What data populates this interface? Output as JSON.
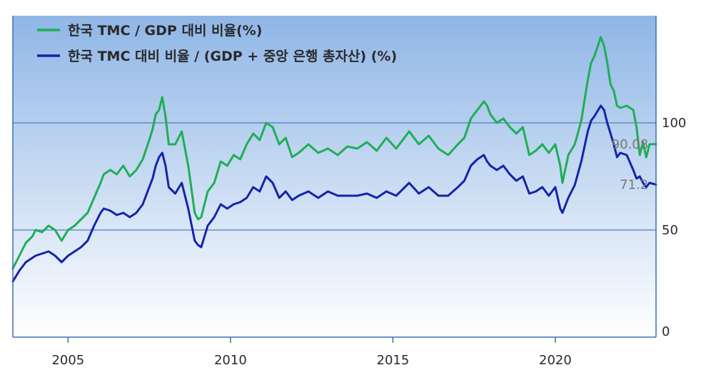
{
  "chart_data": {
    "type": "line",
    "title": "",
    "xlabel": "",
    "ylabel": "",
    "xlim": [
      2003.3,
      2023.1
    ],
    "ylim": [
      0,
      150
    ],
    "grid": "horizontal",
    "legend_placement": "top-left",
    "x_ticks": [
      2005,
      2010,
      2015,
      2020
    ],
    "x_tick_labels": [
      "2005",
      "2010",
      "2015",
      "2020"
    ],
    "y_ticks": [
      0,
      50,
      100
    ],
    "y_tick_labels": [
      "0",
      "50",
      "100"
    ],
    "annotations": [
      {
        "text": "90.08",
        "x": 2022.95,
        "y": 90.08
      },
      {
        "text": "71.2",
        "x": 2022.95,
        "y": 71.2
      }
    ],
    "colors": {
      "series_1": "#1fae55",
      "series_2": "#1424a8",
      "plot_top": "#8fb6e6",
      "plot_bottom": "#ffffff",
      "axis": "#3d6db5",
      "grid": "#4a7cc4"
    },
    "series": [
      {
        "name": "한국 TMC / GDP 대비 비율(%)",
        "color": "#1fae55",
        "x": [
          2003.3,
          2003.5,
          2003.7,
          2003.9,
          2004.0,
          2004.2,
          2004.4,
          2004.6,
          2004.8,
          2005.0,
          2005.2,
          2005.4,
          2005.6,
          2005.8,
          2006.0,
          2006.1,
          2006.3,
          2006.5,
          2006.7,
          2006.9,
          2007.1,
          2007.3,
          2007.5,
          2007.6,
          2007.7,
          2007.8,
          2007.9,
          2008.0,
          2008.1,
          2008.3,
          2008.5,
          2008.7,
          2008.9,
          2009.0,
          2009.1,
          2009.3,
          2009.5,
          2009.7,
          2009.9,
          2010.1,
          2010.3,
          2010.5,
          2010.7,
          2010.9,
          2011.1,
          2011.3,
          2011.5,
          2011.7,
          2011.9,
          2012.1,
          2012.4,
          2012.7,
          2013.0,
          2013.3,
          2013.6,
          2013.9,
          2014.2,
          2014.5,
          2014.8,
          2015.1,
          2015.3,
          2015.5,
          2015.8,
          2016.1,
          2016.4,
          2016.7,
          2017.0,
          2017.2,
          2017.4,
          2017.6,
          2017.8,
          2017.9,
          2018.0,
          2018.2,
          2018.4,
          2018.6,
          2018.8,
          2019.0,
          2019.2,
          2019.4,
          2019.6,
          2019.8,
          2020.0,
          2020.15,
          2020.22,
          2020.4,
          2020.6,
          2020.8,
          2021.0,
          2021.1,
          2021.2,
          2021.4,
          2021.5,
          2021.6,
          2021.7,
          2021.8,
          2021.9,
          2022.0,
          2022.2,
          2022.4,
          2022.5,
          2022.6,
          2022.7,
          2022.8,
          2022.9,
          2023.1
        ],
        "y": [
          32,
          38,
          44,
          47,
          50,
          49,
          52,
          50,
          45,
          50,
          52,
          55,
          58,
          65,
          72,
          76,
          78,
          76,
          80,
          75,
          78,
          83,
          92,
          97,
          104,
          106,
          112,
          103,
          90,
          90,
          96,
          80,
          58,
          55,
          56,
          68,
          72,
          82,
          80,
          85,
          83,
          90,
          95,
          92,
          100,
          98,
          90,
          93,
          84,
          86,
          90,
          86,
          88,
          85,
          89,
          88,
          91,
          87,
          93,
          88,
          92,
          96,
          90,
          94,
          88,
          85,
          90,
          93,
          102,
          106,
          110,
          108,
          104,
          100,
          102,
          98,
          95,
          98,
          85,
          87,
          90,
          86,
          90,
          80,
          72,
          85,
          90,
          101,
          120,
          128,
          131,
          140,
          136,
          128,
          118,
          115,
          108,
          107,
          108,
          106,
          98,
          85,
          91,
          84,
          90,
          90.08
        ]
      },
      {
        "name": "한국 TMC 대비 비율 / (GDP + 중앙 은행 총자산) (%)",
        "color": "#1424a8",
        "x": [
          2003.3,
          2003.5,
          2003.7,
          2003.9,
          2004.0,
          2004.2,
          2004.4,
          2004.6,
          2004.8,
          2005.0,
          2005.2,
          2005.4,
          2005.6,
          2005.8,
          2006.0,
          2006.1,
          2006.3,
          2006.5,
          2006.7,
          2006.9,
          2007.1,
          2007.3,
          2007.5,
          2007.6,
          2007.7,
          2007.8,
          2007.9,
          2008.0,
          2008.1,
          2008.3,
          2008.5,
          2008.7,
          2008.9,
          2009.0,
          2009.1,
          2009.3,
          2009.5,
          2009.7,
          2009.9,
          2010.1,
          2010.3,
          2010.5,
          2010.7,
          2010.9,
          2011.1,
          2011.3,
          2011.5,
          2011.7,
          2011.9,
          2012.1,
          2012.4,
          2012.7,
          2013.0,
          2013.3,
          2013.6,
          2013.9,
          2014.2,
          2014.5,
          2014.8,
          2015.1,
          2015.3,
          2015.5,
          2015.8,
          2016.1,
          2016.4,
          2016.7,
          2017.0,
          2017.2,
          2017.4,
          2017.6,
          2017.8,
          2017.9,
          2018.0,
          2018.2,
          2018.4,
          2018.6,
          2018.8,
          2019.0,
          2019.2,
          2019.4,
          2019.6,
          2019.8,
          2020.0,
          2020.15,
          2020.22,
          2020.4,
          2020.6,
          2020.8,
          2021.0,
          2021.1,
          2021.2,
          2021.4,
          2021.5,
          2021.6,
          2021.7,
          2021.8,
          2021.9,
          2022.0,
          2022.2,
          2022.4,
          2022.5,
          2022.6,
          2022.7,
          2022.8,
          2022.9,
          2023.1
        ],
        "y": [
          26,
          31,
          35,
          37,
          38,
          39,
          40,
          38,
          35,
          38,
          40,
          42,
          45,
          52,
          58,
          60,
          59,
          57,
          58,
          56,
          58,
          62,
          70,
          74,
          80,
          84,
          86,
          80,
          70,
          67,
          72,
          60,
          45,
          43,
          42,
          52,
          56,
          62,
          60,
          62,
          63,
          65,
          70,
          68,
          75,
          72,
          65,
          68,
          64,
          66,
          68,
          65,
          68,
          66,
          66,
          66,
          67,
          65,
          68,
          66,
          69,
          72,
          67,
          70,
          66,
          66,
          70,
          73,
          80,
          83,
          85,
          82,
          80,
          78,
          80,
          76,
          73,
          75,
          67,
          68,
          70,
          66,
          70,
          60,
          58,
          65,
          71,
          82,
          96,
          101,
          103,
          108,
          106,
          100,
          95,
          90,
          84,
          86,
          85,
          78,
          74,
          75,
          72,
          70,
          72,
          71.2
        ]
      }
    ]
  }
}
